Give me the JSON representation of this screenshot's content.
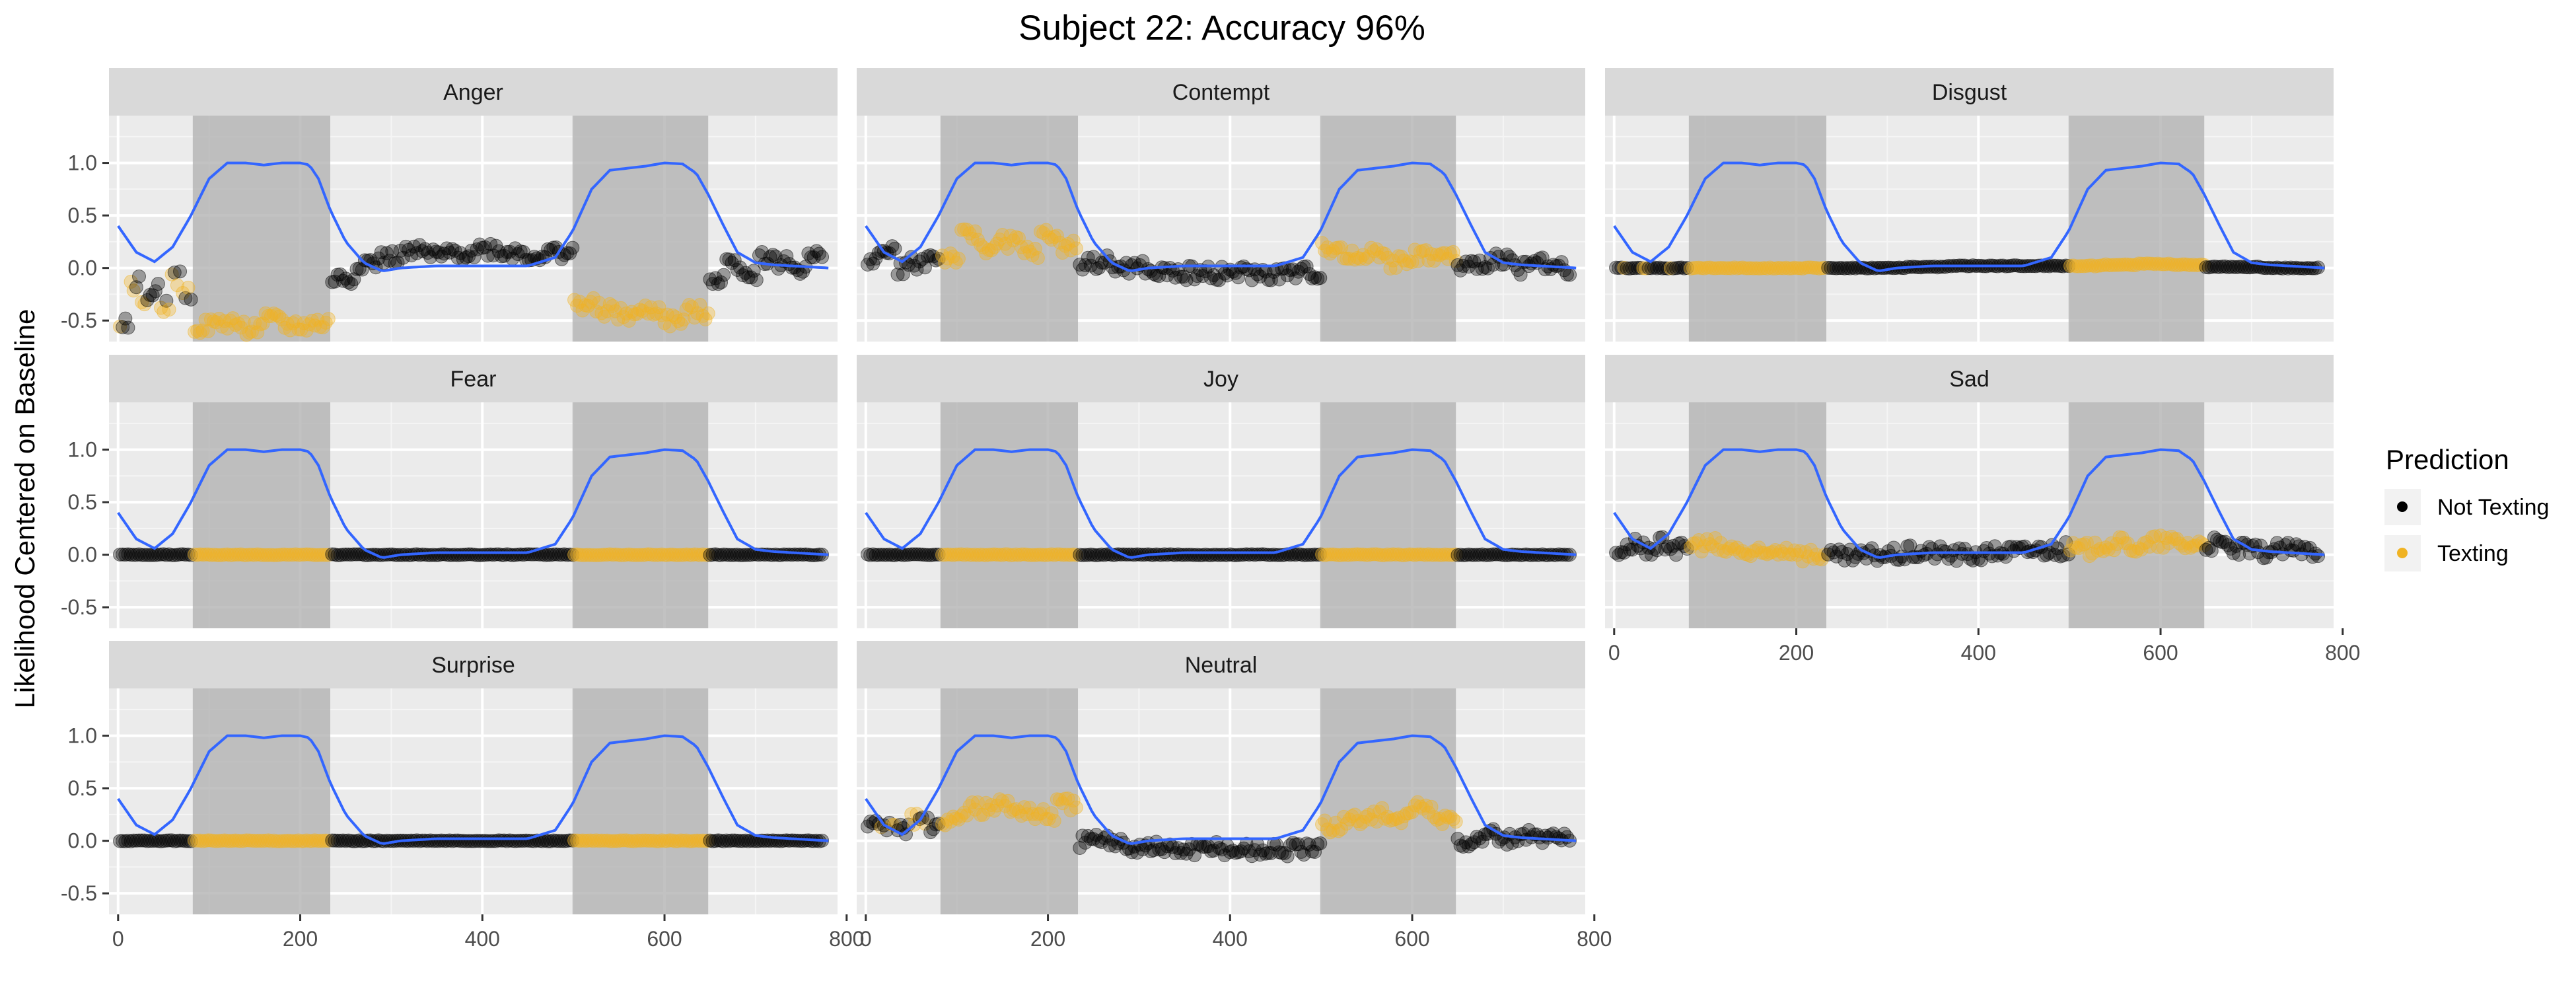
{
  "chart_data": {
    "type": "scatter",
    "title": "Subject 22: Accuracy 96%",
    "ylabel": "Likelihood Centered on Baseline",
    "xlabel": "",
    "xlim": [
      -10,
      790
    ],
    "ylim": [
      -0.7,
      1.45
    ],
    "x_ticks": [
      0,
      200,
      400,
      600,
      800
    ],
    "x_tick_labels": [
      "0",
      "200",
      "400",
      "600",
      "800"
    ],
    "y_ticks": [
      -0.5,
      0.0,
      0.5,
      1.0
    ],
    "y_tick_labels": [
      "-0.5",
      "0.0",
      "0.5",
      "1.0"
    ],
    "grid": true,
    "facet_layout": "3 columns x 3 rows",
    "texting_windows": [
      [
        82,
        233
      ],
      [
        499,
        648
      ]
    ],
    "legend": {
      "title": "Prediction",
      "position": "right",
      "entries": [
        {
          "label": "Not Texting",
          "color": "#000000"
        },
        {
          "label": "Texting",
          "color": "#f0b323"
        }
      ]
    },
    "colors": {
      "not_texting": "#000000",
      "texting": "#f0b323",
      "curve": "#3366ff",
      "panel_bg": "#ebebeb",
      "strip_bg": "#d9d9d9",
      "shade": "#b3b3b3"
    },
    "curve": {
      "name": "",
      "x": [
        0,
        20,
        40,
        60,
        80,
        100,
        120,
        140,
        160,
        180,
        200,
        210,
        220,
        233,
        250,
        270,
        290,
        310,
        350,
        400,
        450,
        480,
        499,
        520,
        540,
        560,
        580,
        600,
        620,
        635,
        648,
        665,
        680,
        700,
        720,
        740,
        760,
        780
      ],
      "y": [
        0.4,
        0.15,
        0.06,
        0.2,
        0.5,
        0.85,
        1.0,
        1.0,
        0.98,
        1.0,
        1.0,
        0.98,
        0.85,
        0.55,
        0.25,
        0.05,
        -0.03,
        0.0,
        0.02,
        0.02,
        0.02,
        0.1,
        0.35,
        0.75,
        0.93,
        0.95,
        0.97,
        1.0,
        0.99,
        0.9,
        0.7,
        0.4,
        0.15,
        0.05,
        0.03,
        0.02,
        0.01,
        0.0
      ]
    },
    "panels": [
      {
        "name": "Anger",
        "segments": [
          {
            "x0": 0,
            "x1": 82,
            "pred": "mixed",
            "values": [
              -0.5,
              -0.15,
              -0.3,
              -0.2,
              -0.35,
              -0.1,
              -0.25
            ]
          },
          {
            "x0": 82,
            "x1": 233,
            "pred": "texting",
            "values": [
              -0.55,
              -0.52,
              -0.57,
              -0.5,
              -0.55,
              -0.53
            ]
          },
          {
            "x0": 233,
            "x1": 499,
            "pred": "not",
            "values": [
              -0.1,
              0.05,
              0.1,
              0.15,
              0.12,
              0.15,
              0.18,
              0.15,
              0.12,
              0.15
            ]
          },
          {
            "x0": 499,
            "x1": 648,
            "pred": "texting",
            "values": [
              -0.35,
              -0.4,
              -0.45,
              -0.4,
              -0.5,
              -0.42
            ]
          },
          {
            "x0": 648,
            "x1": 775,
            "pred": "not",
            "values": [
              -0.1,
              0.05,
              -0.05,
              0.1,
              0.05,
              0.0,
              0.1
            ]
          }
        ]
      },
      {
        "name": "Contempt",
        "segments": [
          {
            "x0": 0,
            "x1": 82,
            "pred": "not",
            "values": [
              0.1,
              0.15,
              0.0,
              0.05,
              0.1
            ]
          },
          {
            "x0": 82,
            "x1": 233,
            "pred": "texting",
            "values": [
              0.1,
              0.3,
              0.2,
              0.25,
              0.15,
              0.3,
              0.2
            ]
          },
          {
            "x0": 233,
            "x1": 499,
            "pred": "not",
            "values": [
              0.05,
              0.0,
              -0.05,
              -0.05,
              -0.05,
              -0.06,
              -0.05
            ]
          },
          {
            "x0": 499,
            "x1": 648,
            "pred": "texting",
            "values": [
              0.2,
              0.1,
              0.15,
              0.05,
              0.12,
              0.1
            ]
          },
          {
            "x0": 648,
            "x1": 775,
            "pred": "not",
            "values": [
              0.0,
              0.05,
              0.1,
              0.0,
              0.05,
              0.0
            ]
          }
        ]
      },
      {
        "name": "Disgust",
        "segments": [
          {
            "x0": 0,
            "x1": 82,
            "pred": "mixed",
            "values": [
              0.0,
              0.0,
              0.0,
              0.0
            ]
          },
          {
            "x0": 82,
            "x1": 233,
            "pred": "texting",
            "values": [
              0.0,
              0.0,
              0.0,
              0.0
            ]
          },
          {
            "x0": 233,
            "x1": 499,
            "pred": "not",
            "values": [
              0.0,
              0.0,
              0.01,
              0.02,
              0.02,
              0.02
            ]
          },
          {
            "x0": 499,
            "x1": 648,
            "pred": "texting",
            "values": [
              0.02,
              0.03,
              0.04,
              0.03
            ]
          },
          {
            "x0": 648,
            "x1": 775,
            "pred": "not",
            "values": [
              0.01,
              0.01,
              0.0,
              0.0
            ]
          }
        ]
      },
      {
        "name": "Fear",
        "segments": [
          {
            "x0": 0,
            "x1": 82,
            "pred": "not",
            "values": [
              0.0,
              0.0,
              0.0
            ]
          },
          {
            "x0": 82,
            "x1": 233,
            "pred": "texting",
            "values": [
              0.0,
              0.0,
              0.0
            ]
          },
          {
            "x0": 233,
            "x1": 499,
            "pred": "not",
            "values": [
              0.0,
              0.0,
              0.0
            ]
          },
          {
            "x0": 499,
            "x1": 648,
            "pred": "texting",
            "values": [
              0.0,
              0.0,
              0.0
            ]
          },
          {
            "x0": 648,
            "x1": 775,
            "pred": "not",
            "values": [
              0.0,
              0.0,
              0.0
            ]
          }
        ]
      },
      {
        "name": "Joy",
        "segments": [
          {
            "x0": 0,
            "x1": 82,
            "pred": "not",
            "values": [
              0.0,
              0.0,
              0.0
            ]
          },
          {
            "x0": 82,
            "x1": 233,
            "pred": "texting",
            "values": [
              0.0,
              0.0,
              0.0
            ]
          },
          {
            "x0": 233,
            "x1": 499,
            "pred": "not",
            "values": [
              0.0,
              0.0,
              0.0
            ]
          },
          {
            "x0": 499,
            "x1": 648,
            "pred": "texting",
            "values": [
              0.0,
              0.0,
              0.0
            ]
          },
          {
            "x0": 648,
            "x1": 775,
            "pred": "not",
            "values": [
              0.0,
              0.0,
              0.0
            ]
          }
        ]
      },
      {
        "name": "Sad",
        "segments": [
          {
            "x0": 0,
            "x1": 82,
            "pred": "not",
            "values": [
              0.05,
              0.1,
              0.0,
              0.1,
              0.05
            ]
          },
          {
            "x0": 82,
            "x1": 233,
            "pred": "texting",
            "values": [
              0.1,
              0.05,
              0.0,
              0.05,
              0.0
            ]
          },
          {
            "x0": 233,
            "x1": 499,
            "pred": "not",
            "values": [
              -0.02,
              0.0,
              0.02,
              0.0,
              0.03,
              0.05
            ]
          },
          {
            "x0": 499,
            "x1": 648,
            "pred": "texting",
            "values": [
              0.05,
              0.1,
              0.08,
              0.12,
              0.1
            ]
          },
          {
            "x0": 648,
            "x1": 775,
            "pred": "not",
            "values": [
              0.1,
              0.05,
              0.03,
              0.05,
              0.04
            ]
          }
        ]
      },
      {
        "name": "Surprise",
        "segments": [
          {
            "x0": 0,
            "x1": 82,
            "pred": "not",
            "values": [
              0.0,
              0.0,
              0.0
            ]
          },
          {
            "x0": 82,
            "x1": 233,
            "pred": "texting",
            "values": [
              0.0,
              0.0,
              0.0
            ]
          },
          {
            "x0": 233,
            "x1": 499,
            "pred": "not",
            "values": [
              0.0,
              0.0,
              0.0
            ]
          },
          {
            "x0": 499,
            "x1": 648,
            "pred": "texting",
            "values": [
              0.0,
              0.0,
              0.0
            ]
          },
          {
            "x0": 648,
            "x1": 775,
            "pred": "not",
            "values": [
              0.0,
              0.0,
              0.0
            ]
          }
        ]
      },
      {
        "name": "Neutral",
        "segments": [
          {
            "x0": 0,
            "x1": 82,
            "pred": "mixed",
            "values": [
              0.2,
              0.15,
              0.1,
              0.2,
              0.15
            ]
          },
          {
            "x0": 82,
            "x1": 233,
            "pred": "texting",
            "values": [
              0.2,
              0.3,
              0.35,
              0.3,
              0.25,
              0.35
            ]
          },
          {
            "x0": 233,
            "x1": 499,
            "pred": "not",
            "values": [
              0.0,
              -0.05,
              -0.08,
              -0.08,
              -0.08,
              -0.08
            ]
          },
          {
            "x0": 499,
            "x1": 648,
            "pred": "texting",
            "values": [
              0.15,
              0.2,
              0.25,
              0.2,
              0.3,
              0.2
            ]
          },
          {
            "x0": 648,
            "x1": 775,
            "pred": "not",
            "values": [
              0.0,
              0.05,
              0.0,
              0.05,
              0.0
            ]
          }
        ]
      }
    ]
  }
}
